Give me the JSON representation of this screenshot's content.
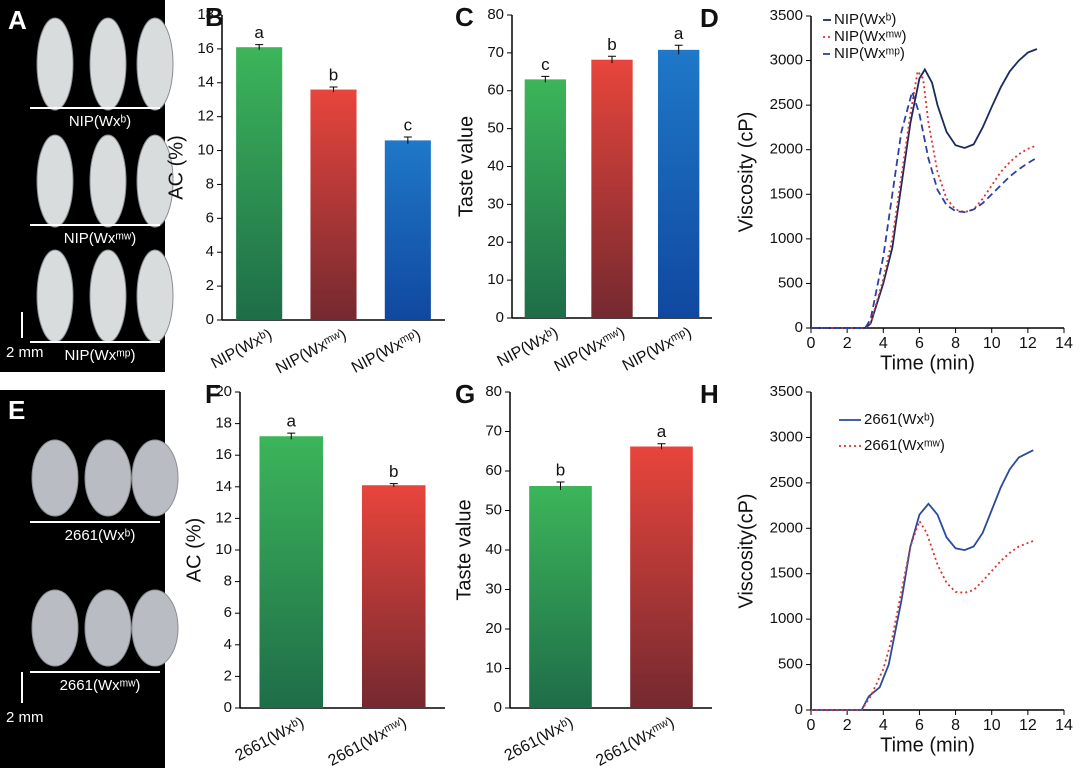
{
  "photo_panels": [
    {
      "panel": "A",
      "labels": [
        "NIP(Wxᵇ)",
        "NIP(Wxᵐʷ)",
        "NIP(Wxᵐᵖ)"
      ],
      "scale": "2 mm"
    },
    {
      "panel": "E",
      "labels": [
        "2661(Wxᵇ)",
        "2661(Wxᵐʷ)"
      ],
      "scale": "2 mm"
    }
  ],
  "chart_data": [
    {
      "type": "bar",
      "panel": "B",
      "ylabel": "AC (%)",
      "categories": [
        "NIP(Wxᵇ)",
        "NIP(Wxᵐʷ)",
        "NIP(Wxᵐᵖ)"
      ],
      "values": [
        16.1,
        13.6,
        10.6
      ],
      "errors": [
        0.15,
        0.15,
        0.2
      ],
      "annotations": [
        "a",
        "b",
        "c"
      ],
      "colors": [
        "#3cb55a",
        "#e8453c",
        "#1f78c8"
      ],
      "ylim": [
        0,
        18
      ],
      "yticks": [
        0,
        2,
        4,
        6,
        8,
        10,
        12,
        14,
        16,
        18
      ]
    },
    {
      "type": "bar",
      "panel": "C",
      "ylabel": "Taste value",
      "categories": [
        "NIP(Wxᵇ)",
        "NIP(Wxᵐʷ)",
        "NIP(Wxᵐᵖ)"
      ],
      "values": [
        63,
        68.2,
        70.8
      ],
      "errors": [
        0.8,
        0.9,
        1.2
      ],
      "annotations": [
        "c",
        "b",
        "a"
      ],
      "colors": [
        "#3cb55a",
        "#e8453c",
        "#1f78c8"
      ],
      "ylim": [
        0,
        80
      ],
      "yticks": [
        0,
        10,
        20,
        30,
        40,
        50,
        60,
        70,
        80
      ]
    },
    {
      "type": "line",
      "panel": "D",
      "xlabel": "Time (min)",
      "ylabel": "Viscosity (cP)",
      "legend": "upper left",
      "xlim": [
        0,
        14
      ],
      "xticks": [
        0,
        2,
        4,
        6,
        8,
        10,
        12,
        14
      ],
      "ylim": [
        0,
        3500
      ],
      "yticks": [
        0,
        500,
        1000,
        1500,
        2000,
        2500,
        3000,
        3500
      ],
      "series": [
        {
          "name": "NIP(Wxᵇ)",
          "color": "#1b2a5c",
          "dash": "solid",
          "x": [
            0,
            3,
            3.3,
            4,
            4.5,
            5,
            5.5,
            6,
            6.3,
            6.7,
            7,
            7.5,
            8,
            8.5,
            9,
            9.5,
            10,
            10.5,
            11,
            11.5,
            12,
            12.5
          ],
          "values": [
            0,
            0,
            50,
            500,
            900,
            1600,
            2300,
            2800,
            2900,
            2750,
            2500,
            2200,
            2050,
            2020,
            2060,
            2250,
            2480,
            2700,
            2880,
            3000,
            3090,
            3130
          ]
        },
        {
          "name": "NIP(Wxᵐʷ)",
          "color": "#e03030",
          "dash": "dotted",
          "x": [
            0,
            3,
            3.3,
            4,
            4.5,
            5,
            5.5,
            5.9,
            6.2,
            6.5,
            7,
            7.5,
            8,
            8.5,
            9,
            9.5,
            10,
            10.5,
            11,
            11.5,
            12,
            12.5
          ],
          "values": [
            0,
            0,
            50,
            550,
            1000,
            1700,
            2400,
            2880,
            2800,
            2300,
            1750,
            1450,
            1330,
            1300,
            1330,
            1450,
            1600,
            1750,
            1860,
            1950,
            2010,
            2050
          ]
        },
        {
          "name": "NIP(Wxᵐᵖ)",
          "color": "#2f3fa0",
          "dash": "dashed",
          "x": [
            0,
            3,
            3.3,
            4,
            4.5,
            5,
            5.6,
            6,
            6.5,
            7,
            7.5,
            8,
            8.5,
            9,
            9.5,
            10,
            10.5,
            11,
            11.5,
            12,
            12.5
          ],
          "values": [
            0,
            0,
            100,
            800,
            1500,
            2200,
            2650,
            2400,
            1900,
            1550,
            1380,
            1310,
            1300,
            1330,
            1400,
            1500,
            1600,
            1700,
            1780,
            1850,
            1910
          ]
        }
      ]
    },
    {
      "type": "bar",
      "panel": "F",
      "ylabel": "AC (%)",
      "categories": [
        "2661(Wxᵇ)",
        "2661(Wxᵐʷ)"
      ],
      "values": [
        17.2,
        14.1
      ],
      "errors": [
        0.2,
        0.1
      ],
      "annotations": [
        "a",
        "b"
      ],
      "colors": [
        "#3cb55a",
        "#e8453c"
      ],
      "ylim": [
        0,
        20
      ],
      "yticks": [
        0,
        2,
        4,
        6,
        8,
        10,
        12,
        14,
        16,
        18,
        20
      ]
    },
    {
      "type": "bar",
      "panel": "G",
      "ylabel": "Taste value",
      "categories": [
        "2661(Wxᵇ)",
        "2661(Wxᵐʷ)"
      ],
      "values": [
        56.2,
        66.2
      ],
      "errors": [
        1.0,
        0.7
      ],
      "annotations": [
        "b",
        "a"
      ],
      "colors": [
        "#3cb55a",
        "#e8453c"
      ],
      "ylim": [
        0,
        80
      ],
      "yticks": [
        0,
        10,
        20,
        30,
        40,
        50,
        60,
        70,
        80
      ]
    },
    {
      "type": "line",
      "panel": "H",
      "xlabel": "Time (min)",
      "ylabel": "Viscosity(cP)",
      "legend": "upper left",
      "xlim": [
        0,
        14
      ],
      "xticks": [
        0,
        2,
        4,
        6,
        8,
        10,
        12,
        14
      ],
      "ylim": [
        0,
        3500
      ],
      "yticks": [
        0,
        500,
        1000,
        1500,
        2000,
        2500,
        3000,
        3500
      ],
      "series": [
        {
          "name": "2661(Wxᵇ)",
          "color": "#2a4a9a",
          "dash": "solid",
          "x": [
            0,
            2.8,
            3.2,
            3.8,
            4.3,
            5,
            5.5,
            6,
            6.5,
            7,
            7.5,
            8,
            8.5,
            9,
            9.5,
            10,
            10.5,
            11,
            11.5,
            12.3
          ],
          "values": [
            0,
            0,
            150,
            250,
            500,
            1200,
            1800,
            2150,
            2270,
            2150,
            1900,
            1780,
            1760,
            1800,
            1950,
            2200,
            2450,
            2650,
            2780,
            2860
          ]
        },
        {
          "name": "2661(Wxᵐʷ)",
          "color": "#e03030",
          "dash": "dotted",
          "x": [
            0,
            2.8,
            3.3,
            4,
            4.5,
            5,
            5.5,
            6,
            6.4,
            7,
            7.5,
            8,
            8.5,
            9,
            9.5,
            10,
            10.5,
            11,
            11.5,
            12.3
          ],
          "values": [
            0,
            0,
            150,
            450,
            800,
            1300,
            1800,
            2080,
            1950,
            1600,
            1400,
            1300,
            1290,
            1320,
            1420,
            1530,
            1640,
            1730,
            1800,
            1860
          ]
        }
      ]
    }
  ]
}
